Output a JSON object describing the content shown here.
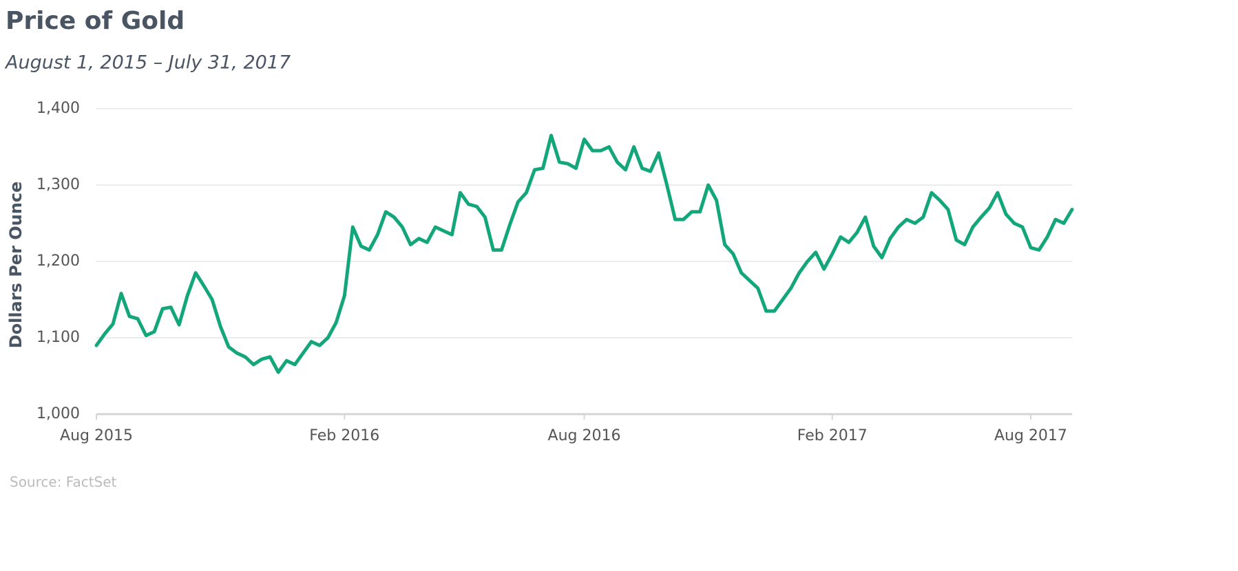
{
  "chart_data": {
    "type": "line",
    "title": "Price of Gold",
    "subtitle": "August 1, 2015 – July 31, 2017",
    "y_label": "Dollars Per Ounce",
    "source": "Source: FactSet",
    "categories": [
      "Aug 2015",
      null,
      null,
      null,
      null,
      null,
      null,
      null,
      null,
      null,
      null,
      null,
      null,
      null,
      null,
      null,
      null,
      null,
      null,
      null,
      null,
      null,
      null,
      null,
      null,
      null,
      null,
      null,
      null,
      null,
      "Feb 2016",
      null,
      null,
      null,
      null,
      null,
      null,
      null,
      null,
      null,
      null,
      null,
      null,
      null,
      null,
      null,
      null,
      null,
      null,
      null,
      null,
      null,
      null,
      null,
      null,
      null,
      null,
      null,
      null,
      "Aug 2016",
      null,
      null,
      null,
      null,
      null,
      null,
      null,
      null,
      null,
      null,
      null,
      null,
      null,
      null,
      null,
      null,
      null,
      null,
      null,
      null,
      null,
      null,
      null,
      null,
      null,
      null,
      null,
      null,
      null,
      "Feb 2017",
      null,
      null,
      null,
      null,
      null,
      null,
      null,
      null,
      null,
      null,
      null,
      null,
      null,
      null,
      null,
      null,
      null,
      null,
      null,
      null,
      null,
      null,
      null,
      "Aug 2017",
      null,
      null,
      null,
      null,
      null
    ],
    "series": [
      {
        "name": "Gold",
        "color": "#13a67b",
        "values": [
          1090,
          1105,
          1118,
          1158,
          1128,
          1125,
          1103,
          1108,
          1138,
          1140,
          1117,
          1155,
          1185,
          1168,
          1150,
          1115,
          1088,
          1080,
          1075,
          1065,
          1072,
          1075,
          1055,
          1070,
          1065,
          1080,
          1095,
          1090,
          1100,
          1120,
          1155,
          1245,
          1220,
          1215,
          1235,
          1265,
          1258,
          1245,
          1222,
          1230,
          1225,
          1245,
          1240,
          1235,
          1290,
          1275,
          1272,
          1258,
          1215,
          1215,
          1248,
          1278,
          1290,
          1320,
          1322,
          1365,
          1330,
          1328,
          1322,
          1360,
          1345,
          1345,
          1350,
          1330,
          1320,
          1350,
          1322,
          1318,
          1342,
          1300,
          1255,
          1255,
          1265,
          1265,
          1300,
          1280,
          1222,
          1210,
          1185,
          1175,
          1165,
          1135,
          1135,
          1150,
          1165,
          1185,
          1200,
          1212,
          1190,
          1210,
          1232,
          1225,
          1238,
          1258,
          1220,
          1205,
          1230,
          1245,
          1255,
          1250,
          1258,
          1290,
          1280,
          1268,
          1228,
          1222,
          1245,
          1258,
          1270,
          1290,
          1262,
          1250,
          1245,
          1218,
          1215,
          1232,
          1255,
          1250,
          1268
        ]
      }
    ],
    "ylim": [
      1000,
      1400
    ],
    "yticks": [
      {
        "value": 1000,
        "label": "1,000"
      },
      {
        "value": 1100,
        "label": "1,100"
      },
      {
        "value": 1200,
        "label": "1,200"
      },
      {
        "value": 1300,
        "label": "1,300"
      },
      {
        "value": 1400,
        "label": "1,400"
      }
    ],
    "grid": true
  }
}
